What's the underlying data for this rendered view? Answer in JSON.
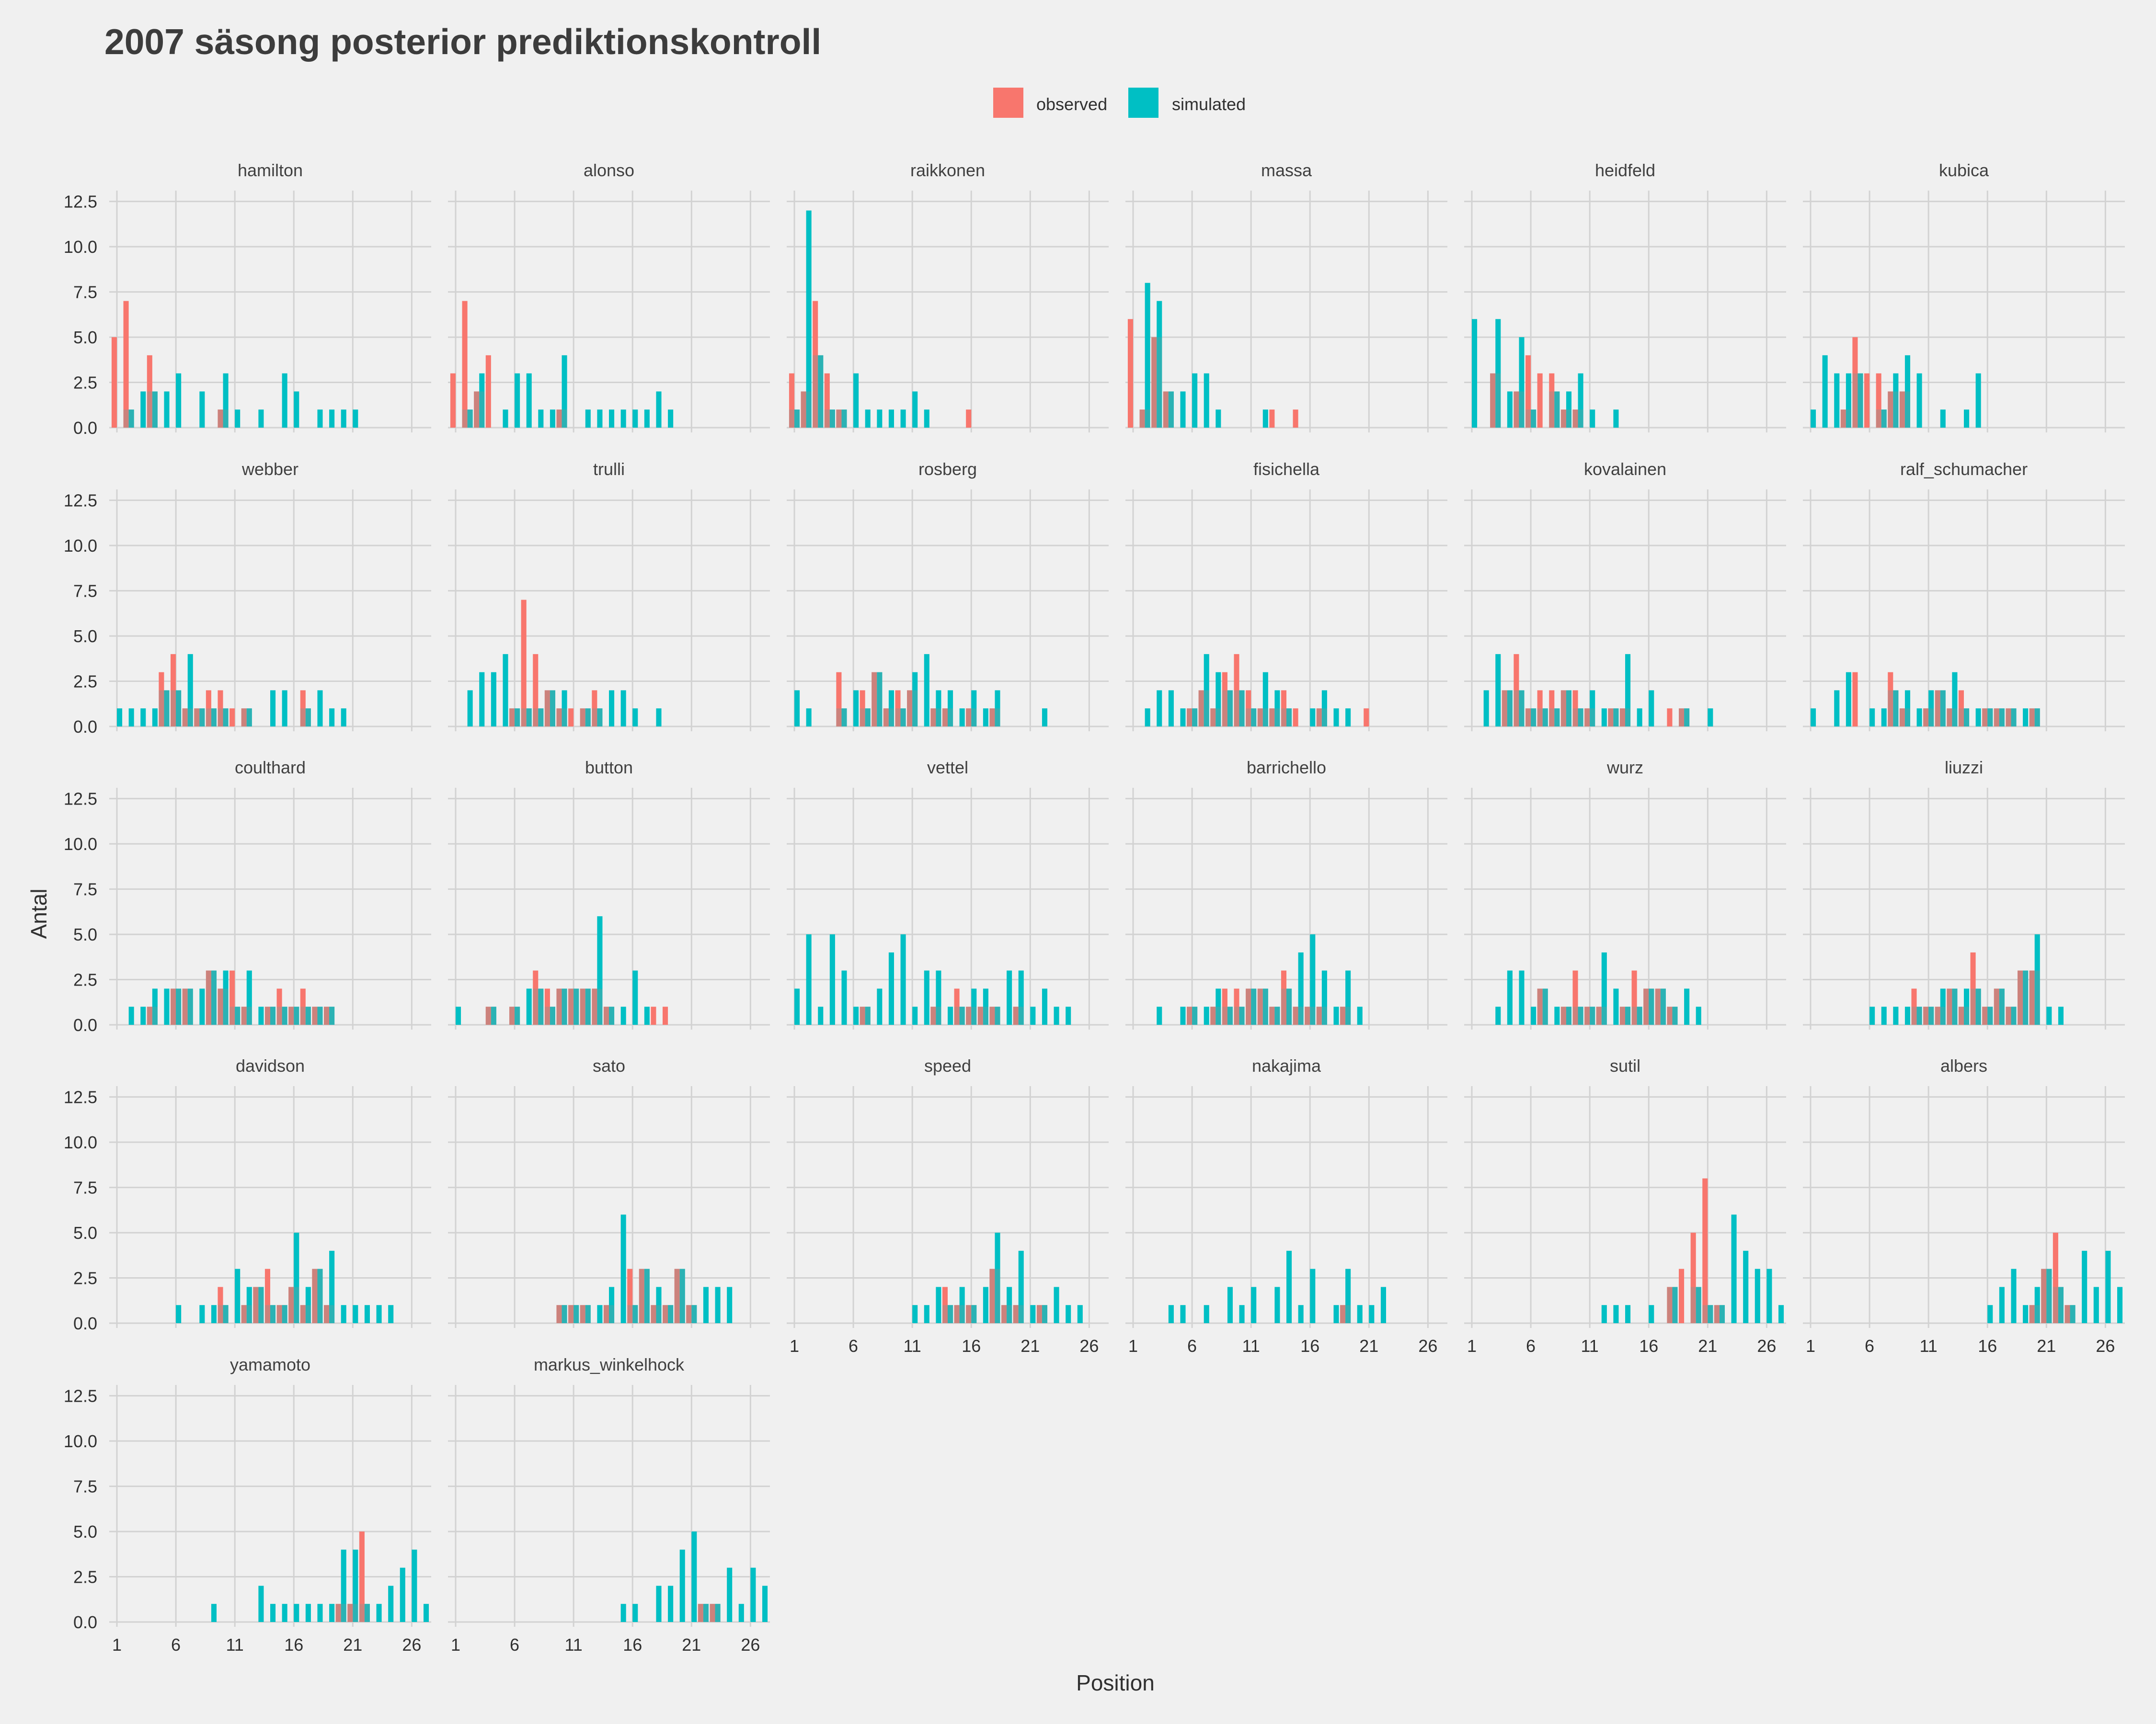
{
  "chart_data": {
    "type": "bar",
    "title": "2007 säsong posterior prediktionskontroll",
    "xlabel": "Position",
    "ylabel": "Antal",
    "xlim": [
      1,
      27
    ],
    "ylim": [
      0,
      12.5
    ],
    "x_ticks": [
      1,
      6,
      11,
      16,
      21,
      26
    ],
    "y_ticks": [
      0.0,
      2.5,
      5.0,
      7.5,
      10.0,
      12.5
    ],
    "y_tick_labels": [
      "0.0",
      "2.5",
      "5.0",
      "7.5",
      "10.0",
      "12.5"
    ],
    "grid": true,
    "legend_position": "top",
    "legend": [
      {
        "name": "observed",
        "color": "#f8766d"
      },
      {
        "name": "simulated",
        "color": "#00bfc4"
      }
    ],
    "colors": {
      "observed": "#f8766d",
      "simulated": "#00bfc4",
      "overlap": "#7c9b99",
      "background": "#f0f0f0",
      "grid": "#d2d2d2"
    },
    "panels": [
      {
        "name": "hamilton",
        "observed": {
          "1": 5,
          "2": 7,
          "4": 4,
          "10": 1
        },
        "simulated": {
          "2": 1,
          "3": 2,
          "4": 2,
          "5": 2,
          "6": 3,
          "8": 2,
          "10": 3,
          "11": 1,
          "13": 1,
          "15": 3,
          "16": 2,
          "18": 1,
          "19": 1,
          "20": 1,
          "21": 1
        }
      },
      {
        "name": "alonso",
        "observed": {
          "1": 3,
          "2": 7,
          "3": 2,
          "4": 4,
          "10": 1
        },
        "simulated": {
          "2": 1,
          "3": 3,
          "5": 1,
          "6": 3,
          "7": 3,
          "8": 1,
          "9": 1,
          "10": 4,
          "12": 1,
          "13": 1,
          "14": 1,
          "15": 1,
          "16": 1,
          "17": 1,
          "18": 2,
          "19": 1
        }
      },
      {
        "name": "raikkonen",
        "observed": {
          "1": 3,
          "2": 2,
          "3": 7,
          "4": 3,
          "5": 1,
          "16": 1
        },
        "simulated": {
          "1": 1,
          "2": 12,
          "3": 4,
          "4": 1,
          "5": 1,
          "6": 3,
          "7": 1,
          "8": 1,
          "9": 1,
          "10": 1,
          "11": 2,
          "12": 1
        }
      },
      {
        "name": "massa",
        "observed": {
          "1": 6,
          "2": 1,
          "3": 5,
          "4": 2,
          "13": 1,
          "15": 1
        },
        "simulated": {
          "2": 8,
          "3": 7,
          "4": 2,
          "5": 2,
          "6": 3,
          "7": 3,
          "8": 1,
          "12": 1
        }
      },
      {
        "name": "heidfeld",
        "observed": {
          "3": 3,
          "5": 2,
          "6": 4,
          "7": 3,
          "8": 3,
          "9": 1,
          "10": 1
        },
        "simulated": {
          "1": 6,
          "3": 6,
          "4": 2,
          "5": 5,
          "6": 1,
          "8": 2,
          "9": 2,
          "10": 3,
          "11": 1,
          "13": 1
        }
      },
      {
        "name": "kubica",
        "observed": {
          "4": 1,
          "5": 5,
          "6": 3,
          "7": 3,
          "8": 2,
          "9": 2
        },
        "simulated": {
          "1": 1,
          "2": 4,
          "3": 3,
          "4": 3,
          "5": 3,
          "7": 1,
          "8": 3,
          "9": 4,
          "10": 3,
          "12": 1,
          "14": 1,
          "15": 3
        }
      },
      {
        "name": "webber",
        "observed": {
          "5": 3,
          "6": 4,
          "7": 1,
          "8": 1,
          "9": 2,
          "10": 2,
          "11": 1,
          "12": 1,
          "17": 2
        },
        "simulated": {
          "1": 1,
          "2": 1,
          "3": 1,
          "4": 1,
          "5": 2,
          "6": 2,
          "7": 4,
          "8": 1,
          "9": 1,
          "10": 1,
          "12": 1,
          "14": 2,
          "15": 2,
          "17": 1,
          "18": 2,
          "19": 1,
          "20": 1
        }
      },
      {
        "name": "trulli",
        "observed": {
          "6": 1,
          "7": 7,
          "8": 4,
          "9": 2,
          "10": 1,
          "11": 1,
          "12": 1,
          "13": 2
        },
        "simulated": {
          "2": 2,
          "3": 3,
          "4": 3,
          "5": 4,
          "6": 1,
          "7": 1,
          "8": 1,
          "9": 2,
          "10": 2,
          "12": 1,
          "13": 1,
          "14": 2,
          "15": 2,
          "16": 1,
          "18": 1
        }
      },
      {
        "name": "rosberg",
        "observed": {
          "5": 3,
          "7": 2,
          "8": 3,
          "9": 1,
          "10": 2,
          "11": 2,
          "13": 1,
          "14": 1,
          "16": 1,
          "18": 1
        },
        "simulated": {
          "1": 2,
          "2": 1,
          "5": 1,
          "6": 2,
          "7": 1,
          "8": 3,
          "9": 2,
          "10": 1,
          "11": 3,
          "12": 4,
          "13": 2,
          "14": 2,
          "15": 1,
          "16": 2,
          "17": 1,
          "18": 2,
          "22": 1
        }
      },
      {
        "name": "fisichella",
        "observed": {
          "6": 1,
          "7": 2,
          "8": 1,
          "9": 3,
          "10": 4,
          "11": 2,
          "12": 1,
          "13": 1,
          "14": 2,
          "15": 1,
          "17": 1,
          "21": 1
        },
        "simulated": {
          "2": 1,
          "3": 2,
          "4": 2,
          "5": 1,
          "6": 1,
          "7": 4,
          "8": 3,
          "9": 2,
          "10": 2,
          "11": 1,
          "12": 3,
          "13": 2,
          "14": 1,
          "16": 1,
          "17": 2,
          "18": 1,
          "19": 1
        }
      },
      {
        "name": "kovalainen",
        "observed": {
          "4": 2,
          "5": 4,
          "6": 1,
          "7": 2,
          "8": 2,
          "9": 2,
          "10": 2,
          "11": 1,
          "13": 1,
          "14": 1,
          "18": 1,
          "19": 1
        },
        "simulated": {
          "2": 2,
          "3": 4,
          "4": 2,
          "5": 2,
          "6": 1,
          "7": 1,
          "8": 1,
          "9": 2,
          "10": 1,
          "11": 2,
          "12": 1,
          "13": 1,
          "14": 4,
          "15": 1,
          "16": 2,
          "19": 1,
          "21": 1
        }
      },
      {
        "name": "ralf_schumacher",
        "observed": {
          "5": 3,
          "8": 3,
          "9": 1,
          "11": 1,
          "12": 2,
          "13": 1,
          "14": 2,
          "16": 1,
          "17": 1,
          "18": 1,
          "20": 1
        },
        "simulated": {
          "1": 1,
          "3": 2,
          "4": 3,
          "6": 1,
          "7": 1,
          "8": 2,
          "9": 2,
          "10": 1,
          "11": 2,
          "12": 2,
          "13": 3,
          "14": 1,
          "15": 1,
          "16": 1,
          "17": 1,
          "18": 1,
          "19": 1,
          "20": 1
        }
      },
      {
        "name": "coulthard",
        "observed": {
          "4": 1,
          "6": 2,
          "7": 2,
          "9": 3,
          "10": 2,
          "11": 3,
          "12": 1,
          "14": 1,
          "15": 2,
          "16": 1,
          "17": 2,
          "18": 1,
          "19": 1
        },
        "simulated": {
          "2": 1,
          "3": 1,
          "4": 2,
          "5": 2,
          "6": 2,
          "7": 2,
          "8": 2,
          "9": 3,
          "10": 3,
          "11": 1,
          "12": 3,
          "13": 1,
          "14": 1,
          "15": 1,
          "16": 1,
          "17": 1,
          "18": 1,
          "19": 1
        }
      },
      {
        "name": "button",
        "observed": {
          "4": 1,
          "6": 1,
          "8": 3,
          "9": 2,
          "10": 2,
          "11": 2,
          "12": 2,
          "13": 2,
          "14": 1,
          "18": 1,
          "19": 1
        },
        "simulated": {
          "1": 1,
          "4": 1,
          "6": 1,
          "7": 2,
          "8": 2,
          "9": 1,
          "10": 2,
          "11": 2,
          "12": 2,
          "13": 6,
          "14": 1,
          "15": 1,
          "16": 3,
          "17": 1
        }
      },
      {
        "name": "vettel",
        "observed": {
          "7": 1,
          "13": 1,
          "15": 2,
          "16": 1,
          "17": 1,
          "18": 1,
          "20": 1
        },
        "simulated": {
          "1": 2,
          "2": 5,
          "3": 1,
          "4": 5,
          "5": 3,
          "6": 1,
          "7": 1,
          "8": 2,
          "9": 4,
          "10": 5,
          "11": 1,
          "12": 3,
          "13": 3,
          "14": 1,
          "15": 1,
          "16": 2,
          "17": 2,
          "18": 1,
          "19": 3,
          "20": 3,
          "21": 1,
          "22": 2,
          "23": 1,
          "24": 1
        }
      },
      {
        "name": "barrichello",
        "observed": {
          "6": 1,
          "8": 1,
          "9": 2,
          "10": 2,
          "11": 2,
          "12": 2,
          "13": 1,
          "14": 3,
          "15": 1,
          "16": 1,
          "17": 1,
          "19": 1
        },
        "simulated": {
          "3": 1,
          "5": 1,
          "6": 1,
          "7": 1,
          "8": 2,
          "9": 1,
          "10": 1,
          "11": 2,
          "12": 2,
          "13": 1,
          "14": 2,
          "15": 4,
          "16": 5,
          "17": 3,
          "18": 1,
          "19": 3,
          "20": 1
        }
      },
      {
        "name": "wurz",
        "observed": {
          "7": 2,
          "9": 1,
          "10": 3,
          "11": 1,
          "12": 1,
          "14": 1,
          "15": 3,
          "16": 2,
          "17": 2,
          "18": 1
        },
        "simulated": {
          "3": 1,
          "4": 3,
          "5": 3,
          "6": 1,
          "7": 2,
          "8": 1,
          "9": 1,
          "10": 1,
          "11": 1,
          "12": 4,
          "13": 2,
          "14": 1,
          "15": 1,
          "16": 2,
          "17": 2,
          "18": 1,
          "19": 2,
          "20": 1
        }
      },
      {
        "name": "liuzzi",
        "observed": {
          "10": 2,
          "11": 1,
          "12": 1,
          "13": 2,
          "14": 1,
          "15": 4,
          "16": 1,
          "17": 2,
          "18": 1,
          "19": 3,
          "20": 3
        },
        "simulated": {
          "6": 1,
          "7": 1,
          "8": 1,
          "9": 1,
          "10": 1,
          "11": 1,
          "12": 2,
          "13": 2,
          "14": 2,
          "15": 2,
          "16": 1,
          "17": 2,
          "18": 1,
          "19": 3,
          "20": 5,
          "21": 1,
          "22": 1
        }
      },
      {
        "name": "davidson",
        "observed": {
          "10": 2,
          "12": 1,
          "13": 2,
          "14": 3,
          "15": 1,
          "16": 2,
          "17": 1,
          "18": 3,
          "19": 1
        },
        "simulated": {
          "6": 1,
          "8": 1,
          "9": 1,
          "10": 1,
          "11": 3,
          "12": 2,
          "13": 2,
          "14": 1,
          "15": 1,
          "16": 5,
          "17": 2,
          "18": 3,
          "19": 4,
          "20": 1,
          "21": 1,
          "22": 1,
          "23": 1,
          "24": 1
        }
      },
      {
        "name": "sato",
        "observed": {
          "10": 1,
          "11": 1,
          "12": 1,
          "14": 1,
          "16": 3,
          "17": 3,
          "18": 1,
          "19": 1,
          "20": 3,
          "21": 1
        },
        "simulated": {
          "10": 1,
          "11": 1,
          "12": 1,
          "13": 1,
          "14": 2,
          "15": 6,
          "16": 1,
          "17": 3,
          "18": 2,
          "19": 1,
          "20": 3,
          "21": 1,
          "22": 2,
          "23": 2,
          "24": 2
        }
      },
      {
        "name": "speed",
        "observed": {
          "14": 2,
          "15": 1,
          "16": 1,
          "18": 3,
          "19": 1,
          "20": 1,
          "22": 1
        },
        "simulated": {
          "11": 1,
          "12": 1,
          "13": 2,
          "14": 1,
          "15": 2,
          "16": 1,
          "17": 2,
          "18": 5,
          "19": 2,
          "20": 4,
          "21": 1,
          "22": 1,
          "23": 2,
          "24": 1,
          "25": 1
        }
      },
      {
        "name": "nakajima",
        "observed": {
          "19": 1
        },
        "simulated": {
          "4": 1,
          "5": 1,
          "7": 1,
          "9": 2,
          "10": 1,
          "11": 2,
          "13": 2,
          "14": 4,
          "15": 1,
          "16": 3,
          "18": 1,
          "19": 3,
          "20": 1,
          "21": 1,
          "22": 2
        }
      },
      {
        "name": "sutil",
        "observed": {
          "18": 2,
          "19": 3,
          "20": 5,
          "21": 8,
          "22": 1
        },
        "simulated": {
          "12": 1,
          "13": 1,
          "14": 1,
          "16": 1,
          "18": 2,
          "20": 2,
          "21": 1,
          "22": 1,
          "23": 6,
          "24": 4,
          "25": 3,
          "26": 3,
          "27": 1
        }
      },
      {
        "name": "albers",
        "observed": {
          "20": 1,
          "21": 3,
          "22": 5,
          "23": 1
        },
        "simulated": {
          "16": 1,
          "17": 2,
          "18": 3,
          "19": 1,
          "20": 2,
          "21": 3,
          "22": 2,
          "23": 1,
          "24": 4,
          "25": 2,
          "26": 4,
          "27": 2
        }
      },
      {
        "name": "yamamoto",
        "observed": {
          "20": 1,
          "21": 1,
          "22": 5
        },
        "simulated": {
          "9": 1,
          "13": 2,
          "14": 1,
          "15": 1,
          "16": 1,
          "17": 1,
          "18": 1,
          "19": 1,
          "20": 4,
          "21": 4,
          "22": 1,
          "23": 1,
          "24": 2,
          "25": 3,
          "26": 4,
          "27": 1
        }
      },
      {
        "name": "markus_winkelhock",
        "observed": {
          "22": 1,
          "23": 1
        },
        "simulated": {
          "15": 1,
          "16": 1,
          "18": 2,
          "19": 2,
          "20": 4,
          "21": 5,
          "22": 1,
          "23": 1,
          "24": 3,
          "25": 1,
          "26": 3,
          "27": 2
        }
      }
    ]
  }
}
